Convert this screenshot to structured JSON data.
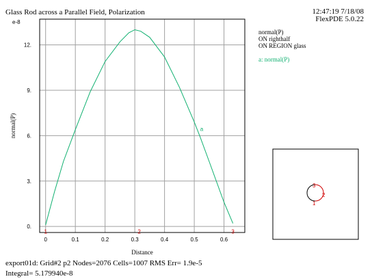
{
  "header": {
    "title": "Glass Rod across a Parallel Field, Polarization",
    "timestamp": "12:47:19 7/18/08",
    "version": "FlexPDE 5.0.22"
  },
  "legend": {
    "lines": [
      "normal(P)",
      "ON righthalf",
      "ON REGION glass"
    ],
    "series_label": "a: normal(P)",
    "series_color": "#10b070"
  },
  "footer": {
    "line1": "export01d:  Grid#2  p2  Nodes=2076 Cells=1007 RMS Err= 1.9e-5",
    "line2": "Integral=  5.179940e-8"
  },
  "chart_data": {
    "type": "line",
    "title": "Glass Rod across a Parallel Field, Polarization",
    "xlabel": "Distance",
    "ylabel": "normal(P)",
    "y_exponent_label": "e-8",
    "xlim": [
      -0.02,
      0.67
    ],
    "ylim": [
      -0.4,
      13.7
    ],
    "x_ticks": [
      0,
      0.1,
      0.2,
      0.3,
      0.4,
      0.5,
      0.6
    ],
    "x_tick_labels": [
      "0",
      "0.1",
      "0.2",
      "0.3",
      "0.4",
      "0.5",
      "0.6"
    ],
    "y_ticks": [
      0,
      3,
      6,
      9,
      12
    ],
    "y_tick_labels": [
      "0.",
      "3.",
      "6.",
      "9.",
      "12."
    ],
    "grid": true,
    "series": [
      {
        "name": "a",
        "color": "#10b070",
        "x": [
          0,
          0.03,
          0.06,
          0.1,
          0.15,
          0.2,
          0.25,
          0.28,
          0.3,
          0.32,
          0.35,
          0.4,
          0.45,
          0.5,
          0.52,
          0.55,
          0.6,
          0.63
        ],
        "values": [
          0.1,
          2.3,
          4.3,
          6.4,
          8.9,
          10.9,
          12.2,
          12.8,
          13.0,
          12.9,
          12.5,
          11.2,
          9.2,
          6.9,
          5.9,
          4.3,
          1.6,
          0.2
        ],
        "marker_labels": [
          {
            "text": "a",
            "x": 0.52,
            "y": 6.3
          }
        ]
      }
    ],
    "path_labels": [
      {
        "text": "1",
        "x": 0,
        "y": -0.25
      },
      {
        "text": "2",
        "x": 0.315,
        "y": -0.25
      },
      {
        "text": "3",
        "x": 0.63,
        "y": -0.25
      }
    ],
    "inset": {
      "labels": [
        "1",
        "2",
        "3"
      ]
    }
  }
}
